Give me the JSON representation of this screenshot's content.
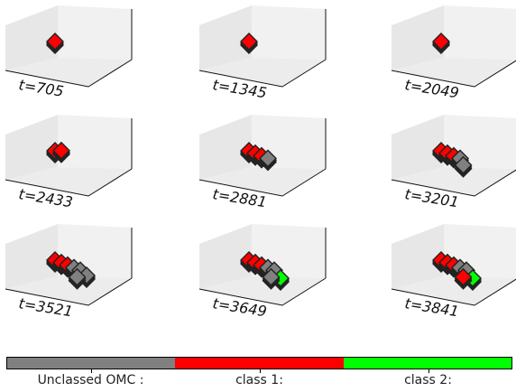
{
  "chart_data": [
    {
      "type": "scatter3d",
      "time_label": "t=705",
      "points": [
        {
          "x": 0.0,
          "y": 0.0,
          "z": 0.0,
          "cls": 1
        }
      ]
    },
    {
      "type": "scatter3d",
      "time_label": "t=1345",
      "points": [
        {
          "x": 0.0,
          "y": 0.0,
          "z": 0.0,
          "cls": 1
        }
      ]
    },
    {
      "type": "scatter3d",
      "time_label": "t=2049",
      "points": [
        {
          "x": 0.0,
          "y": 0.0,
          "z": 0.0,
          "cls": 1
        }
      ]
    },
    {
      "type": "scatter3d",
      "time_label": "t=2433",
      "points": [
        {
          "x": 0.0,
          "y": 0.0,
          "z": 0.0,
          "cls": 1
        },
        {
          "x": 0.1,
          "y": 0.0,
          "z": 0.05,
          "cls": 1
        }
      ]
    },
    {
      "type": "scatter3d",
      "time_label": "t=2881",
      "points": [
        {
          "x": 0.0,
          "y": 0.0,
          "z": 0.0,
          "cls": 1
        },
        {
          "x": 0.1,
          "y": 0.0,
          "z": 0.0,
          "cls": 1
        },
        {
          "x": 0.2,
          "y": 0.0,
          "z": 0.0,
          "cls": 1
        },
        {
          "x": 0.3,
          "y": 0.0,
          "z": 0.0,
          "cls": 0
        }
      ]
    },
    {
      "type": "scatter3d",
      "time_label": "t=3201",
      "points": [
        {
          "x": 0.0,
          "y": 0.0,
          "z": 0.0,
          "cls": 1
        },
        {
          "x": 0.1,
          "y": 0.0,
          "z": 0.0,
          "cls": 1
        },
        {
          "x": 0.2,
          "y": 0.0,
          "z": 0.0,
          "cls": 1
        },
        {
          "x": 0.3,
          "y": 0.0,
          "z": 0.0,
          "cls": 0
        },
        {
          "x": 0.35,
          "y": 0.0,
          "z": -0.1,
          "cls": 0
        }
      ]
    },
    {
      "type": "scatter3d",
      "time_label": "t=3521",
      "points": [
        {
          "x": 0.0,
          "y": 0.0,
          "z": 0.0,
          "cls": 1
        },
        {
          "x": 0.1,
          "y": 0.0,
          "z": 0.0,
          "cls": 1
        },
        {
          "x": 0.2,
          "y": 0.0,
          "z": 0.0,
          "cls": 1
        },
        {
          "x": 0.3,
          "y": 0.0,
          "z": 0.0,
          "cls": 0
        },
        {
          "x": 0.4,
          "y": 0.0,
          "z": 0.0,
          "cls": 0
        },
        {
          "x": 0.5,
          "y": 0.0,
          "z": -0.05,
          "cls": 0
        },
        {
          "x": 0.35,
          "y": 0.0,
          "z": -0.15,
          "cls": 0
        }
      ]
    },
    {
      "type": "scatter3d",
      "time_label": "t=3649",
      "points": [
        {
          "x": 0.0,
          "y": 0.0,
          "z": 0.0,
          "cls": 1
        },
        {
          "x": 0.1,
          "y": 0.0,
          "z": 0.0,
          "cls": 1
        },
        {
          "x": 0.2,
          "y": 0.0,
          "z": 0.0,
          "cls": 1
        },
        {
          "x": 0.3,
          "y": 0.0,
          "z": 0.0,
          "cls": 0
        },
        {
          "x": 0.4,
          "y": 0.0,
          "z": 0.0,
          "cls": 0
        },
        {
          "x": 0.5,
          "y": 0.0,
          "z": -0.1,
          "cls": 2
        },
        {
          "x": 0.35,
          "y": 0.0,
          "z": -0.15,
          "cls": 0
        }
      ]
    },
    {
      "type": "scatter3d",
      "time_label": "t=3841",
      "points": [
        {
          "x": 0.0,
          "y": 0.0,
          "z": 0.0,
          "cls": 1
        },
        {
          "x": 0.1,
          "y": 0.0,
          "z": 0.0,
          "cls": 1
        },
        {
          "x": 0.2,
          "y": 0.0,
          "z": 0.0,
          "cls": 1
        },
        {
          "x": 0.3,
          "y": 0.0,
          "z": 0.0,
          "cls": 0
        },
        {
          "x": 0.4,
          "y": 0.0,
          "z": 0.0,
          "cls": 0
        },
        {
          "x": 0.5,
          "y": 0.0,
          "z": -0.1,
          "cls": 2
        },
        {
          "x": 0.35,
          "y": 0.0,
          "z": -0.15,
          "cls": 1
        }
      ]
    }
  ],
  "colorbar": {
    "classes": [
      {
        "label": "Unclassed OMC :",
        "color": "#808080"
      },
      {
        "label": "class 1:",
        "color": "#ff0000"
      },
      {
        "label": "class 2:",
        "color": "#00ff00"
      }
    ]
  }
}
